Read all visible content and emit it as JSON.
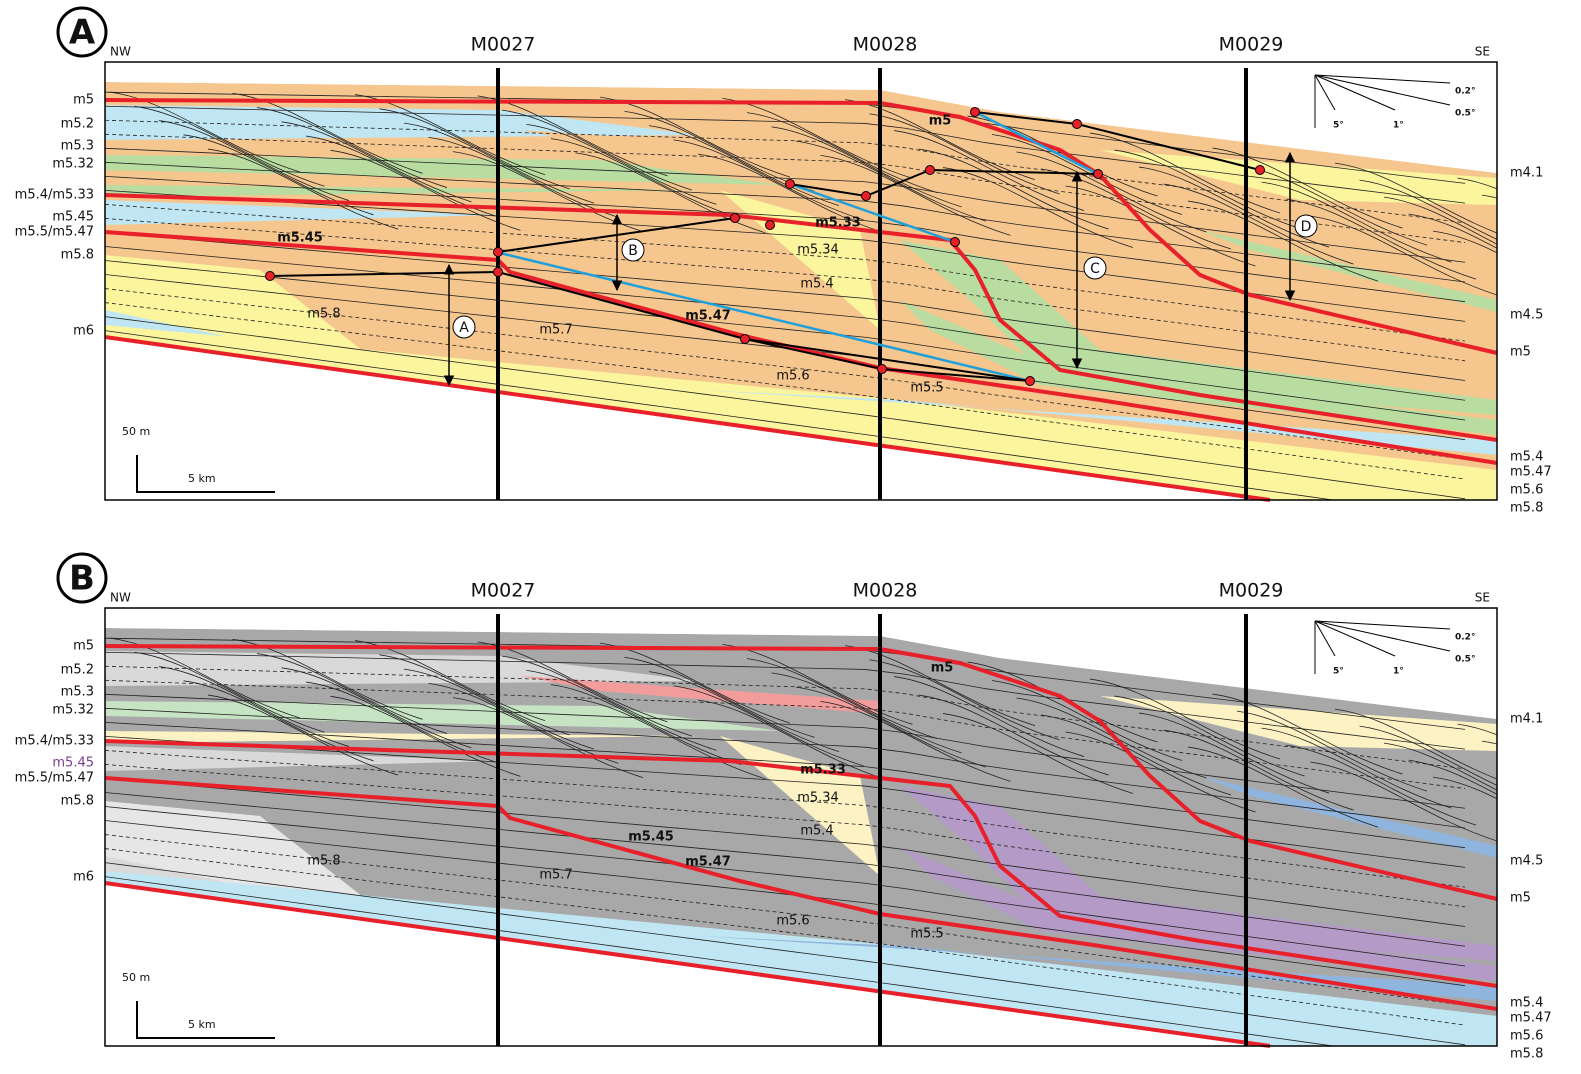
{
  "panels": [
    {
      "label": "A",
      "nw": "NW",
      "se": "SE",
      "wells": [
        "M0027",
        "M0028",
        "M0029"
      ],
      "left_labels": [
        "m5",
        "m5.2",
        "m5.3",
        "m5.32",
        "m5.4/m5.33",
        "m5.45",
        "m5.5/m5.47",
        "m5.8",
        "m6"
      ],
      "right_labels": [
        "m4.1",
        "m4.5",
        "m5",
        "m5.4",
        "m5.47",
        "m5.6",
        "m5.8"
      ],
      "internal_labels": [
        "m5",
        "m5.33",
        "m5.45",
        "m5.34",
        "m5.4",
        "m5.8",
        "m5.7",
        "m5.47",
        "m5.6",
        "m5.5"
      ],
      "scale": {
        "vertical": "50 m",
        "horizontal": "5 km"
      },
      "dips": [
        "0.2°",
        "0.5°",
        "5°",
        "1°"
      ],
      "markers": [
        "A",
        "B",
        "C",
        "D"
      ]
    },
    {
      "label": "B",
      "nw": "NW",
      "se": "SE",
      "wells": [
        "M0027",
        "M0028",
        "M0029"
      ],
      "left_labels": [
        "m5",
        "m5.2",
        "m5.3",
        "m5.32",
        "m5.4/m5.33",
        "m5.45",
        "m5.5/m5.47",
        "m5.8",
        "m6"
      ],
      "right_labels": [
        "m4.1",
        "m4.5",
        "m5",
        "m5.4",
        "m5.47",
        "m5.6",
        "m5.8"
      ],
      "internal_labels": [
        "m5",
        "m5.33",
        "m5.34",
        "m5.4",
        "m5.8",
        "m5.45",
        "m5.47",
        "m5.7",
        "m5.6",
        "m5.5"
      ],
      "scale": {
        "vertical": "50 m",
        "horizontal": "5 km"
      },
      "dips": [
        "0.2°",
        "0.5°",
        "5°",
        "1°"
      ]
    }
  ]
}
